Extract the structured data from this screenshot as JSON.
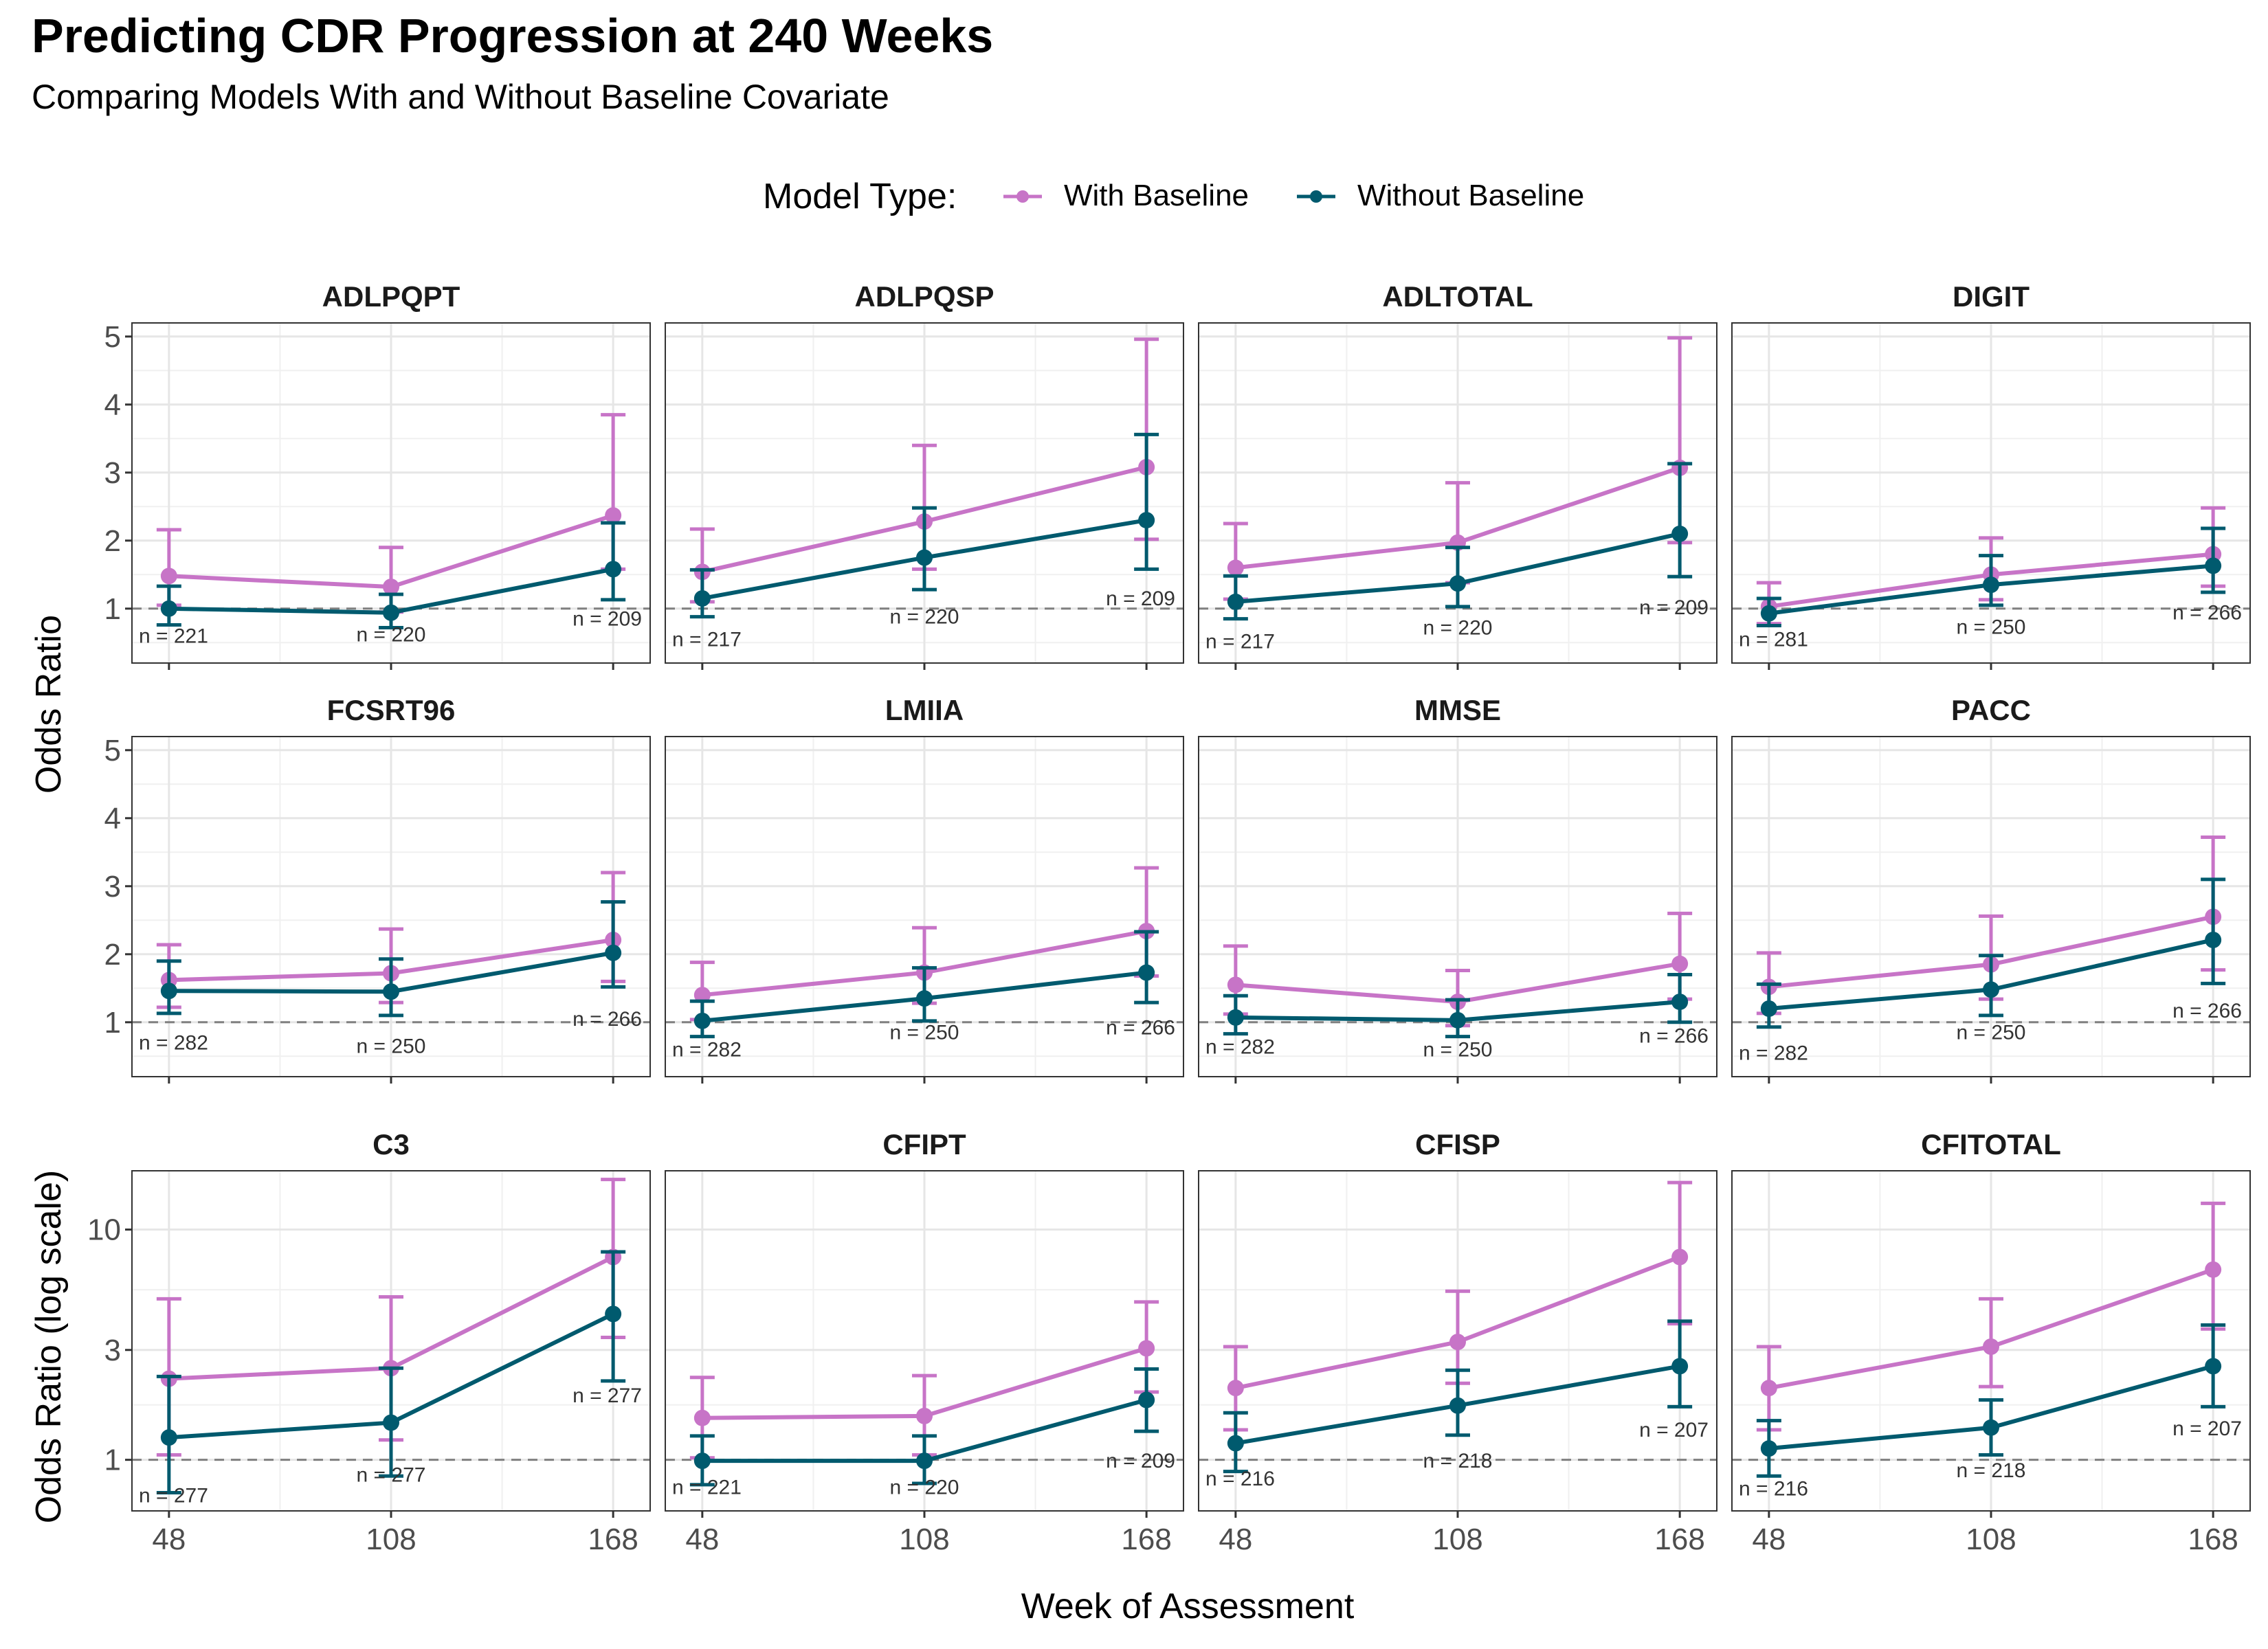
{
  "title": "Predicting CDR Progression at 240 Weeks",
  "subtitle": "Comparing Models With and Without Baseline Covariate",
  "legend": {
    "title": "Model Type:",
    "items": [
      {
        "label": "With Baseline",
        "color": "#c774c7"
      },
      {
        "label": "Without Baseline",
        "color": "#005a6e"
      }
    ]
  },
  "xlabel": "Week of Assessment",
  "ylabel_linear": "Odds Ratio",
  "ylabel_log": "Odds Ratio (log scale)",
  "chart_data": {
    "type": "line",
    "facet_layout": {
      "rows": 3,
      "cols": 4
    },
    "x": [
      48,
      108,
      168
    ],
    "x_ticks": [
      "48",
      "108",
      "168"
    ],
    "reference_line": 1,
    "grid": true,
    "legend_position": "top",
    "scales": {
      "linear": {
        "ylim": [
          0.2,
          5.2
        ],
        "ticks": [
          "1",
          "2",
          "3",
          "4",
          "5"
        ],
        "tick_values": [
          1,
          2,
          3,
          4,
          5
        ]
      },
      "log": {
        "ylim": [
          0.6,
          18
        ],
        "ticks": [
          "1",
          "3",
          "10"
        ],
        "tick_values": [
          1,
          3,
          10
        ]
      }
    },
    "panels": [
      {
        "name": "ADLPQPT",
        "scale": "linear",
        "with": {
          "est": [
            1.48,
            1.32,
            2.37
          ],
          "lo": [
            1.05,
            0.95,
            1.58
          ],
          "hi": [
            2.16,
            1.9,
            3.85
          ]
        },
        "without": {
          "est": [
            1.0,
            0.94,
            1.58
          ],
          "lo": [
            0.76,
            0.72,
            1.13
          ],
          "hi": [
            1.33,
            1.21,
            2.26
          ]
        },
        "n": [
          "n = 221",
          "n = 220",
          "n = 209"
        ],
        "n_val": [
          0.6,
          0.62,
          0.85
        ]
      },
      {
        "name": "ADLPQSP",
        "scale": "linear",
        "with": {
          "est": [
            1.54,
            2.28,
            3.08
          ],
          "lo": [
            1.1,
            1.58,
            2.02
          ],
          "hi": [
            2.17,
            3.4,
            4.96
          ]
        },
        "without": {
          "est": [
            1.15,
            1.75,
            2.3
          ],
          "lo": [
            0.88,
            1.28,
            1.58
          ],
          "hi": [
            1.57,
            2.48,
            3.56
          ]
        },
        "n": [
          "n = 217",
          "n = 220",
          "n = 209"
        ],
        "n_val": [
          0.55,
          0.88,
          1.15
        ]
      },
      {
        "name": "ADLTOTAL",
        "scale": "linear",
        "with": {
          "est": [
            1.6,
            1.97,
            3.07
          ],
          "lo": [
            1.14,
            1.38,
            1.97
          ],
          "hi": [
            2.25,
            2.85,
            4.98
          ]
        },
        "without": {
          "est": [
            1.1,
            1.37,
            2.1
          ],
          "lo": [
            0.85,
            1.03,
            1.47
          ],
          "hi": [
            1.48,
            1.9,
            3.13
          ]
        },
        "n": [
          "n = 217",
          "n = 220",
          "n = 209"
        ],
        "n_val": [
          0.52,
          0.72,
          1.02
        ]
      },
      {
        "name": "DIGIT",
        "scale": "linear",
        "with": {
          "est": [
            1.03,
            1.5,
            1.8
          ],
          "lo": [
            0.78,
            1.13,
            1.33
          ],
          "hi": [
            1.38,
            2.04,
            2.48
          ]
        },
        "without": {
          "est": [
            0.93,
            1.35,
            1.63
          ],
          "lo": [
            0.75,
            1.05,
            1.24
          ],
          "hi": [
            1.15,
            1.78,
            2.18
          ]
        },
        "n": [
          "n = 281",
          "n = 250",
          "n = 266"
        ],
        "n_val": [
          0.55,
          0.73,
          0.94
        ]
      },
      {
        "name": "FCSRT96",
        "scale": "linear",
        "with": {
          "est": [
            1.62,
            1.72,
            2.21
          ],
          "lo": [
            1.22,
            1.29,
            1.6
          ],
          "hi": [
            2.14,
            2.37,
            3.2
          ]
        },
        "without": {
          "est": [
            1.46,
            1.45,
            2.02
          ],
          "lo": [
            1.13,
            1.1,
            1.52
          ],
          "hi": [
            1.9,
            1.93,
            2.77
          ]
        },
        "n": [
          "n = 282",
          "n = 250",
          "n = 266"
        ],
        "n_val": [
          0.7,
          0.65,
          1.05
        ]
      },
      {
        "name": "LMIIA",
        "scale": "linear",
        "with": {
          "est": [
            1.4,
            1.73,
            2.34
          ],
          "lo": [
            1.04,
            1.28,
            1.68
          ],
          "hi": [
            1.88,
            2.39,
            3.27
          ]
        },
        "without": {
          "est": [
            1.02,
            1.35,
            1.73
          ],
          "lo": [
            0.79,
            1.02,
            1.29
          ],
          "hi": [
            1.31,
            1.8,
            2.33
          ]
        },
        "n": [
          "n = 282",
          "n = 250",
          "n = 266"
        ],
        "n_val": [
          0.6,
          0.85,
          0.92
        ]
      },
      {
        "name": "MMSE",
        "scale": "linear",
        "with": {
          "est": [
            1.55,
            1.3,
            1.86
          ],
          "lo": [
            1.12,
            0.95,
            1.34
          ],
          "hi": [
            2.12,
            1.76,
            2.6
          ]
        },
        "without": {
          "est": [
            1.07,
            1.03,
            1.3
          ],
          "lo": [
            0.83,
            0.79,
            1.0
          ],
          "hi": [
            1.39,
            1.33,
            1.7
          ]
        },
        "n": [
          "n = 282",
          "n = 250",
          "n = 266"
        ],
        "n_val": [
          0.64,
          0.6,
          0.8
        ]
      },
      {
        "name": "PACC",
        "scale": "linear",
        "with": {
          "est": [
            1.52,
            1.85,
            2.55
          ],
          "lo": [
            1.13,
            1.34,
            1.77
          ],
          "hi": [
            2.02,
            2.56,
            3.72
          ]
        },
        "without": {
          "est": [
            1.2,
            1.48,
            2.21
          ],
          "lo": [
            0.93,
            1.1,
            1.57
          ],
          "hi": [
            1.56,
            1.98,
            3.1
          ]
        },
        "n": [
          "n = 282",
          "n = 250",
          "n = 266"
        ],
        "n_val": [
          0.55,
          0.85,
          1.17
        ]
      },
      {
        "name": "C3",
        "scale": "log",
        "with": {
          "est": [
            2.25,
            2.5,
            7.6
          ],
          "lo": [
            1.05,
            1.22,
            3.4
          ],
          "hi": [
            5.0,
            5.1,
            16.5
          ]
        },
        "without": {
          "est": [
            1.25,
            1.45,
            4.3
          ],
          "lo": [
            0.72,
            0.85,
            2.2
          ],
          "hi": [
            2.3,
            2.5,
            8.0
          ]
        },
        "n": [
          "n = 277",
          "n = 277",
          "n = 277"
        ],
        "n_val": [
          0.7,
          0.86,
          1.9
        ]
      },
      {
        "name": "CFIPT",
        "scale": "log",
        "with": {
          "est": [
            1.52,
            1.55,
            3.05
          ],
          "lo": [
            1.02,
            1.05,
            1.97
          ],
          "hi": [
            2.28,
            2.32,
            4.85
          ]
        },
        "without": {
          "est": [
            0.99,
            0.99,
            1.82
          ],
          "lo": [
            0.78,
            0.79,
            1.33
          ],
          "hi": [
            1.27,
            1.27,
            2.48
          ]
        },
        "n": [
          "n = 221",
          "n = 220",
          "n = 209"
        ],
        "n_val": [
          0.76,
          0.76,
          0.99
        ]
      },
      {
        "name": "CFISP",
        "scale": "log",
        "with": {
          "est": [
            2.05,
            3.25,
            7.6
          ],
          "lo": [
            1.35,
            2.15,
            3.9
          ],
          "hi": [
            3.1,
            5.4,
            16.0
          ]
        },
        "without": {
          "est": [
            1.18,
            1.72,
            2.55
          ],
          "lo": [
            0.89,
            1.28,
            1.7
          ],
          "hi": [
            1.6,
            2.45,
            4.0
          ]
        },
        "n": [
          "n = 216",
          "n = 218",
          "n = 207"
        ],
        "n_val": [
          0.83,
          0.99,
          1.35
        ]
      },
      {
        "name": "CFITOTAL",
        "scale": "log",
        "with": {
          "est": [
            2.05,
            3.1,
            6.7
          ],
          "lo": [
            1.35,
            2.08,
            3.7
          ],
          "hi": [
            3.1,
            5.0,
            13.0
          ]
        },
        "without": {
          "est": [
            1.12,
            1.38,
            2.55
          ],
          "lo": [
            0.85,
            1.05,
            1.7
          ],
          "hi": [
            1.48,
            1.82,
            3.85
          ]
        },
        "n": [
          "n = 216",
          "n = 218",
          "n = 207"
        ],
        "n_val": [
          0.75,
          0.9,
          1.37
        ]
      }
    ]
  }
}
